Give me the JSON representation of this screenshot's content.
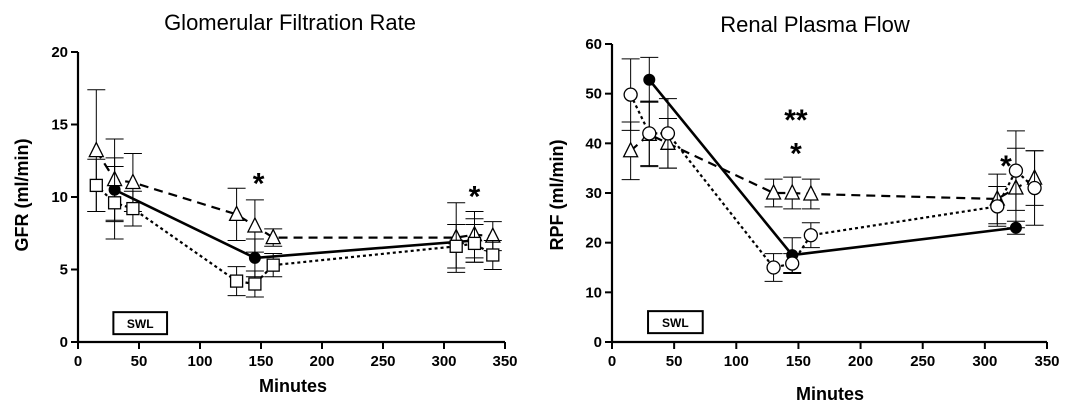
{
  "chart_data": [
    {
      "type": "line",
      "title": "Glomerular Filtration Rate",
      "xlabel": "Minutes",
      "ylabel": "GFR (ml/min)",
      "xlim": [
        0,
        350
      ],
      "ylim": [
        0,
        20
      ],
      "xticks": [
        "0",
        "50",
        "100",
        "150",
        "200",
        "250",
        "300",
        "350"
      ],
      "yticks": [
        "0",
        "5",
        "10",
        "15",
        "20"
      ],
      "grid": false,
      "legend": "none",
      "series": [
        {
          "marker": "filled-circle",
          "line": "solid",
          "x": [
            30,
            145,
            325
          ],
          "y": [
            10.5,
            5.8,
            7.0
          ],
          "err": [
            2.2,
            1.3,
            1.5
          ]
        },
        {
          "marker": "open-triangle",
          "line": "dashed",
          "x": [
            15,
            30,
            45,
            130,
            145,
            160,
            310,
            325,
            340
          ],
          "y": [
            13.2,
            11.2,
            11.0,
            8.8,
            8.0,
            7.2,
            7.2,
            7.4,
            7.3
          ],
          "err": [
            4.2,
            2.8,
            2.0,
            1.8,
            1.8,
            0.6,
            2.4,
            1.6,
            1.0
          ]
        },
        {
          "marker": "open-square",
          "line": "dotted",
          "x": [
            15,
            30,
            45,
            130,
            145,
            160,
            310,
            325,
            340
          ],
          "y": [
            10.8,
            9.6,
            9.2,
            4.2,
            4.0,
            5.3,
            6.6,
            6.8,
            6.0
          ],
          "err": [
            1.8,
            2.5,
            1.2,
            1.0,
            0.9,
            0.8,
            1.5,
            1.3,
            1.0
          ]
        }
      ],
      "annotations": [
        {
          "text": "*",
          "x": 148,
          "y": 11.2
        },
        {
          "text": "*",
          "x": 325,
          "y": 10.3
        },
        {
          "text": "SWL",
          "x0": 29,
          "x1": 73,
          "y": 1.3
        }
      ]
    },
    {
      "type": "line",
      "title": "Renal Plasma Flow",
      "xlabel": "Minutes",
      "ylabel": "RPF (ml/min)",
      "xlim": [
        0,
        350
      ],
      "ylim": [
        0,
        60
      ],
      "xticks": [
        "0",
        "50",
        "100",
        "150",
        "200",
        "250",
        "300",
        "350"
      ],
      "yticks": [
        "0",
        "10",
        "20",
        "30",
        "40",
        "50",
        "60"
      ],
      "grid": false,
      "legend": "none",
      "series": [
        {
          "marker": "filled-circle",
          "line": "solid",
          "x": [
            30,
            145,
            325
          ],
          "y": [
            52.8,
            17.5,
            23.0
          ],
          "err": [
            4.5,
            3.5,
            1.3
          ]
        },
        {
          "marker": "open-triangle",
          "line": "dashed",
          "x": [
            15,
            30,
            45,
            130,
            145,
            160,
            310,
            325,
            340
          ],
          "y": [
            38.5,
            41.8,
            40.0,
            30.0,
            30.0,
            29.8,
            28.8,
            31.0,
            33.0
          ],
          "err": [
            5.8,
            6.5,
            5.0,
            2.8,
            3.2,
            3.0,
            5.0,
            8.0,
            5.5
          ]
        },
        {
          "marker": "open-circle",
          "line": "dotted",
          "x": [
            15,
            30,
            45,
            130,
            145,
            160,
            310,
            325,
            340
          ],
          "y": [
            49.8,
            42.0,
            42.0,
            15.0,
            15.8,
            21.5,
            27.3,
            34.5,
            31.0
          ],
          "err": [
            7.2,
            6.5,
            7.0,
            2.8,
            2.0,
            2.5,
            4.0,
            8.0,
            7.5
          ]
        }
      ],
      "annotations": [
        {
          "text": "**",
          "x": 148,
          "y": 45.5
        },
        {
          "text": "*",
          "x": 148,
          "y": 38.8
        },
        {
          "text": "*",
          "x": 317,
          "y": 36.2
        },
        {
          "text": "SWL",
          "x0": 29,
          "x1": 73,
          "y": 4.0
        }
      ]
    }
  ]
}
